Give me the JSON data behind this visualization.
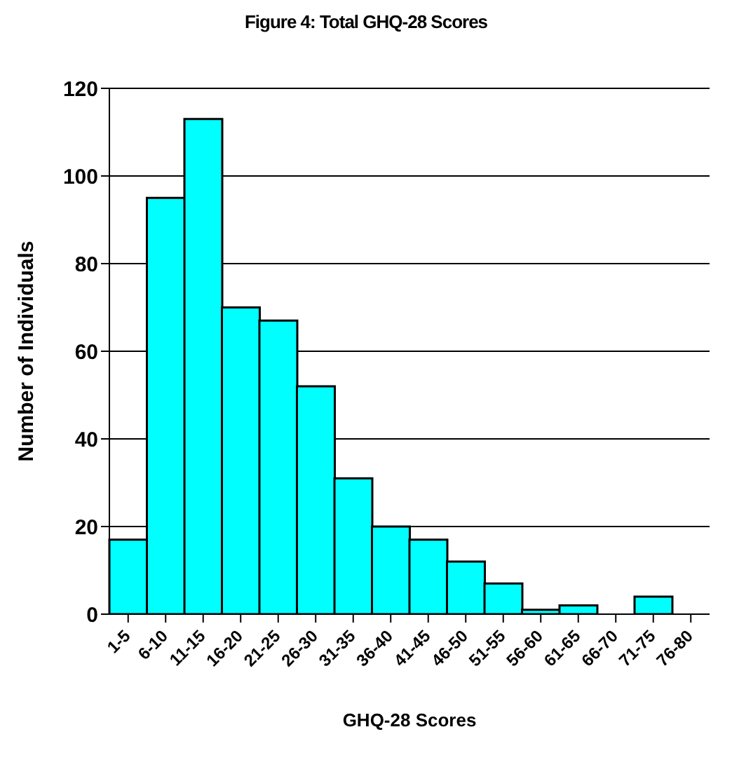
{
  "chart_data": {
    "type": "bar",
    "title": "Figure 4:  Total GHQ-28 Scores",
    "xlabel": "GHQ-28 Scores",
    "ylabel": "Number of Individuals",
    "categories": [
      "1-5",
      "6-10",
      "11-15",
      "16-20",
      "21-25",
      "26-30",
      "31-35",
      "36-40",
      "41-45",
      "46-50",
      "51-55",
      "56-60",
      "61-65",
      "66-70",
      "71-75",
      "76-80"
    ],
    "values": [
      17,
      95,
      113,
      70,
      67,
      52,
      31,
      20,
      17,
      12,
      7,
      1,
      2,
      0,
      4,
      0
    ],
    "color": "#00ffff",
    "ylim": [
      0,
      120
    ],
    "yticks": [
      0,
      20,
      40,
      60,
      80,
      100,
      120
    ],
    "grid": "y"
  }
}
